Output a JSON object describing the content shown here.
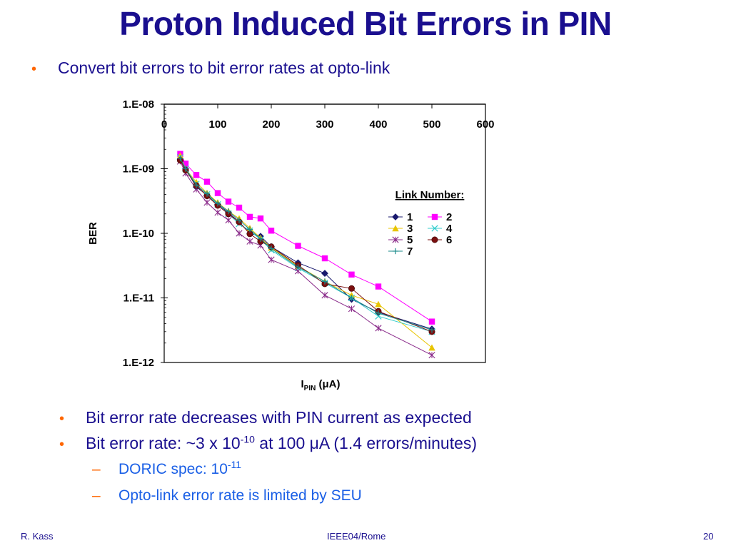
{
  "slide": {
    "title": "Proton Induced Bit Errors in PIN",
    "bullet1": "Convert bit errors to bit error rates at opto-link",
    "bullet2": "Bit error rate decreases with PIN current as expected",
    "bullet3_pre": "Bit error rate: ~3 x 10",
    "bullet3_exp": "-10",
    "bullet3_post": " at 100 μA (1.4 errors/minutes)",
    "sub1_pre": "DORIC spec: 10",
    "sub1_exp": "-11",
    "sub2": "Opto-link error rate is limited by SEU",
    "bullet_glyph": "•",
    "dash_glyph": "–"
  },
  "footer": {
    "author": "R. Kass",
    "conference": "IEEE04/Rome",
    "page": "20"
  },
  "colors": {
    "title": "#1a0f8f",
    "bullet_marker": "#ff6600",
    "sub_text": "#1a5fe6"
  },
  "chart_data": {
    "type": "line",
    "xlabel_main": "I",
    "xlabel_sub": "PIN",
    "xlabel_unit": " (μA)",
    "ylabel": "BER",
    "x_ticks": [
      "0",
      "100",
      "200",
      "300",
      "400",
      "500",
      "600"
    ],
    "y_ticks": [
      "1.E-08",
      "1.E-09",
      "1.E-10",
      "1.E-11",
      "1.E-12"
    ],
    "xlim": [
      0,
      600
    ],
    "ylim": [
      1e-12,
      1e-08
    ],
    "y_scale": "log",
    "legend_title": "Link Number:",
    "legend_placement": "right",
    "series": [
      {
        "name": "1",
        "color": "#1a1a6e",
        "marker": "diamond",
        "x": [
          30,
          40,
          60,
          80,
          100,
          120,
          140,
          160,
          180,
          200,
          250,
          300,
          350,
          400,
          500
        ],
        "y": [
          1.4e-09,
          1e-09,
          5.2e-10,
          3.9e-10,
          2.8e-10,
          2.1e-10,
          1.5e-10,
          1e-10,
          9e-11,
          6.2e-11,
          3.5e-11,
          2.4e-11,
          9.5e-12,
          6e-12,
          3.3e-12
        ]
      },
      {
        "name": "2",
        "color": "#ff00ff",
        "marker": "square",
        "x": [
          30,
          40,
          60,
          80,
          100,
          120,
          140,
          160,
          180,
          200,
          250,
          300,
          350,
          400,
          500
        ],
        "y": [
          1.7e-09,
          1.2e-09,
          8e-10,
          6.3e-10,
          4.2e-10,
          3.1e-10,
          2.5e-10,
          1.8e-10,
          1.7e-10,
          1.1e-10,
          6.4e-11,
          4.1e-11,
          2.3e-11,
          1.5e-11,
          4.3e-12
        ]
      },
      {
        "name": "3",
        "color": "#e8c400",
        "marker": "triangle",
        "x": [
          30,
          40,
          60,
          80,
          100,
          120,
          140,
          160,
          180,
          200,
          250,
          300,
          350,
          400,
          500
        ],
        "y": [
          1.6e-09,
          1e-09,
          6.2e-10,
          4.2e-10,
          3e-10,
          2.2e-10,
          1.7e-10,
          1.2e-10,
          8.5e-11,
          6e-11,
          3.1e-11,
          1.8e-11,
          1.1e-11,
          8e-12,
          1.7e-12
        ]
      },
      {
        "name": "4",
        "color": "#33cccc",
        "marker": "x",
        "x": [
          30,
          40,
          60,
          80,
          100,
          120,
          140,
          160,
          180,
          200,
          250,
          300,
          350,
          400,
          500
        ],
        "y": [
          1.5e-09,
          1e-09,
          5.8e-10,
          4e-10,
          2.8e-10,
          2e-10,
          1.4e-10,
          1.1e-10,
          8e-11,
          5.5e-11,
          2.9e-11,
          1.7e-11,
          1e-11,
          5.2e-12,
          3e-12
        ]
      },
      {
        "name": "5",
        "color": "#8a2b8a",
        "marker": "star",
        "x": [
          30,
          40,
          60,
          80,
          100,
          120,
          140,
          160,
          180,
          200,
          250,
          300,
          350,
          400,
          500
        ],
        "y": [
          1.3e-09,
          8.5e-10,
          4.8e-10,
          3e-10,
          2.1e-10,
          1.6e-10,
          1e-10,
          7.5e-11,
          6.5e-11,
          3.9e-11,
          2.6e-11,
          1.1e-11,
          6.8e-12,
          3.4e-12,
          1.3e-12
        ]
      },
      {
        "name": "6",
        "color": "#7a0f0f",
        "marker": "circle",
        "x": [
          30,
          40,
          60,
          80,
          100,
          120,
          140,
          160,
          180,
          200,
          250,
          300,
          350,
          400,
          500
        ],
        "y": [
          1.35e-09,
          9.5e-10,
          5.5e-10,
          3.8e-10,
          2.7e-10,
          2e-10,
          1.5e-10,
          9.8e-11,
          7.5e-11,
          6.2e-11,
          3.2e-11,
          1.65e-11,
          1.4e-11,
          6.2e-12,
          3e-12
        ]
      },
      {
        "name": "7",
        "color": "#1a8a8a",
        "marker": "plus",
        "x": [
          30,
          40,
          60,
          80,
          100,
          120,
          140,
          160,
          180,
          200,
          250,
          300,
          350,
          400,
          500
        ],
        "y": [
          1.45e-09,
          1e-09,
          5.6e-10,
          4.1e-10,
          2.9e-10,
          2.2e-10,
          1.6e-10,
          1.15e-10,
          8.2e-11,
          5.8e-11,
          3e-11,
          1.8e-11,
          1e-11,
          5.8e-12,
          3.2e-12
        ]
      }
    ]
  }
}
